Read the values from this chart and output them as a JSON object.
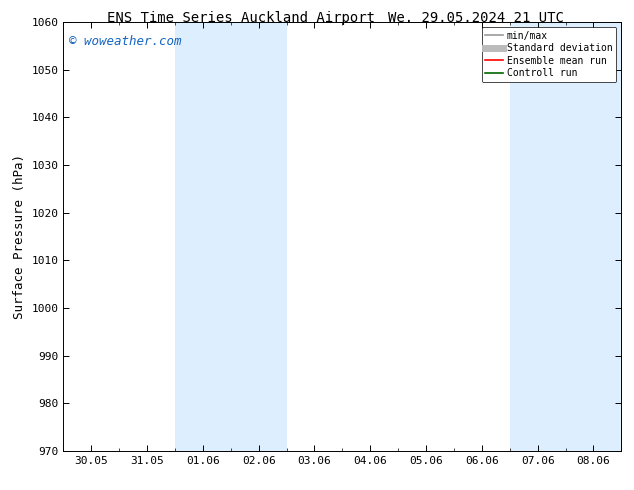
{
  "title_left": "ENS Time Series Auckland Airport",
  "title_right": "We. 29.05.2024 21 UTC",
  "ylabel": "Surface Pressure (hPa)",
  "ylim": [
    970,
    1060
  ],
  "yticks": [
    970,
    980,
    990,
    1000,
    1010,
    1020,
    1030,
    1040,
    1050,
    1060
  ],
  "xtick_labels": [
    "30.05",
    "31.05",
    "01.06",
    "02.06",
    "03.06",
    "04.06",
    "05.06",
    "06.06",
    "07.06",
    "08.06"
  ],
  "watermark": "© woweather.com",
  "watermark_color": "#1565C0",
  "bg_color": "#ffffff",
  "plot_bg_color": "#ffffff",
  "shaded_band_color": "#ddeeff",
  "shaded_bands": [
    {
      "xmin": 2,
      "xmax": 4
    },
    {
      "xmin": 8,
      "xmax": 10
    }
  ],
  "legend_items": [
    {
      "label": "min/max",
      "color": "#999999",
      "lw": 1.2
    },
    {
      "label": "Standard deviation",
      "color": "#bbbbbb",
      "lw": 5
    },
    {
      "label": "Ensemble mean run",
      "color": "#ff0000",
      "lw": 1.2
    },
    {
      "label": "Controll run",
      "color": "#006600",
      "lw": 1.2
    }
  ],
  "title_fontsize": 10,
  "tick_fontsize": 8,
  "ylabel_fontsize": 9,
  "legend_fontsize": 7,
  "watermark_fontsize": 9
}
